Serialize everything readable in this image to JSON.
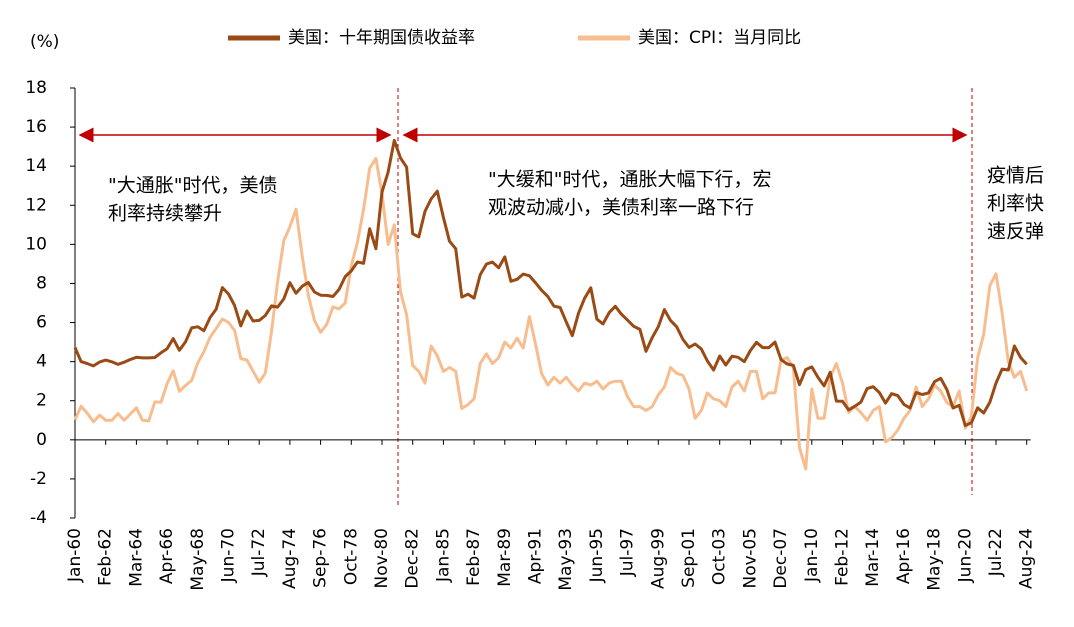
{
  "chart_data": {
    "type": "line",
    "y_unit_label": "(%)",
    "annotations": {
      "left": [
        "\"大通胀\"时代，美债",
        "利率持续攀升"
      ],
      "middle": [
        "\"大缓和\"时代，通胀大幅下行，宏",
        "观波动减小，美债利率一路下行"
      ],
      "right": [
        "疫情后",
        "利率快",
        "速反弹"
      ]
    },
    "categories": [
      "Jan-60",
      null,
      null,
      null,
      null,
      "Feb-62",
      null,
      null,
      null,
      null,
      "Mar-64",
      null,
      null,
      null,
      null,
      "Apr-66",
      null,
      null,
      null,
      null,
      "May-68",
      null,
      null,
      null,
      null,
      "Jun-70",
      null,
      null,
      null,
      null,
      "Jul-72",
      null,
      null,
      null,
      null,
      "Aug-74",
      null,
      null,
      null,
      null,
      "Sep-76",
      null,
      null,
      null,
      null,
      "Oct-78",
      null,
      null,
      null,
      null,
      "Nov-80",
      null,
      null,
      null,
      null,
      "Dec-82",
      null,
      null,
      null,
      null,
      "Jan-85",
      null,
      null,
      null,
      null,
      "Feb-87",
      null,
      null,
      null,
      null,
      "Mar-89",
      null,
      null,
      null,
      null,
      "Apr-91",
      null,
      null,
      null,
      null,
      "May-93",
      null,
      null,
      null,
      null,
      "Jun-95",
      null,
      null,
      null,
      null,
      "Jul-97",
      null,
      null,
      null,
      null,
      "Aug-99",
      null,
      null,
      null,
      null,
      "Sep-01",
      null,
      null,
      null,
      null,
      "Oct-03",
      null,
      null,
      null,
      null,
      "Nov-05",
      null,
      null,
      null,
      null,
      "Dec-07",
      null,
      null,
      null,
      null,
      "Jan-10",
      null,
      null,
      null,
      null,
      "Feb-12",
      null,
      null,
      null,
      null,
      "Mar-14",
      null,
      null,
      null,
      null,
      "Apr-16",
      null,
      null,
      null,
      null,
      "May-18",
      null,
      null,
      null,
      null,
      "Jun-20",
      null,
      null,
      null,
      null,
      "Jul-22",
      null,
      null,
      null,
      null,
      "Aug-24"
    ],
    "series": [
      {
        "name": "美国：十年期国债收益率",
        "color": "#9a4a14",
        "values": [
          4.72,
          4.0,
          3.9,
          3.78,
          3.98,
          4.08,
          3.99,
          3.86,
          3.97,
          4.11,
          4.22,
          4.19,
          4.19,
          4.21,
          4.45,
          4.66,
          5.18,
          4.58,
          5.01,
          5.73,
          5.78,
          5.58,
          6.26,
          6.69,
          7.79,
          7.46,
          6.87,
          5.83,
          6.59,
          6.08,
          6.11,
          6.36,
          6.85,
          6.79,
          7.21,
          8.04,
          7.5,
          7.86,
          8.05,
          7.56,
          7.4,
          7.39,
          7.33,
          7.69,
          8.35,
          8.64,
          9.1,
          9.03,
          10.8,
          9.78,
          12.68,
          13.69,
          15.32,
          14.43,
          13.95,
          10.54,
          10.38,
          11.69,
          12.32,
          12.72,
          11.38,
          10.16,
          9.78,
          7.3,
          7.45,
          7.25,
          8.45,
          8.99,
          9.09,
          8.8,
          9.36,
          8.11,
          8.21,
          8.48,
          8.39,
          8.04,
          7.65,
          7.34,
          6.84,
          6.77,
          6.04,
          5.33,
          6.48,
          7.24,
          7.78,
          6.17,
          5.93,
          6.51,
          6.83,
          6.42,
          6.12,
          5.81,
          5.65,
          4.53,
          5.23,
          5.79,
          6.66,
          6.1,
          5.78,
          5.14,
          4.73,
          4.9,
          4.65,
          4.03,
          3.57,
          4.29,
          3.83,
          4.28,
          4.22,
          4.0,
          4.57,
          4.99,
          4.72,
          4.72,
          5.0,
          4.1,
          3.88,
          3.81,
          2.82,
          3.59,
          3.73,
          3.2,
          2.76,
          3.46,
          1.98,
          1.97,
          1.53,
          1.72,
          1.93,
          2.62,
          2.72,
          2.42,
          1.88,
          2.36,
          2.26,
          1.81,
          1.63,
          2.42,
          2.32,
          2.4,
          2.98,
          3.15,
          2.57,
          1.63,
          1.76,
          0.73,
          0.87,
          1.64,
          1.37,
          1.93,
          2.9,
          3.62,
          3.57,
          4.8,
          4.21,
          3.87
        ]
      },
      {
        "name": "美国：CPI：当月同比",
        "color": "#f7bd8f",
        "values": [
          1.03,
          1.72,
          1.36,
          0.92,
          1.26,
          1.0,
          1.0,
          1.34,
          1.0,
          1.32,
          1.64,
          1.0,
          0.97,
          1.94,
          1.92,
          2.87,
          3.53,
          2.48,
          2.78,
          3.04,
          3.94,
          4.51,
          5.25,
          5.7,
          6.18,
          6.0,
          5.6,
          4.16,
          4.08,
          3.51,
          2.95,
          3.41,
          5.53,
          8.1,
          10.2,
          10.9,
          11.8,
          9.4,
          7.4,
          6.1,
          5.5,
          5.9,
          6.8,
          6.7,
          7.0,
          8.9,
          10.1,
          11.8,
          13.9,
          14.4,
          12.6,
          10.0,
          11.0,
          7.6,
          6.4,
          3.8,
          3.5,
          2.9,
          4.8,
          4.3,
          3.5,
          3.7,
          3.5,
          1.6,
          1.8,
          2.1,
          3.9,
          4.4,
          3.9,
          4.2,
          5.0,
          4.7,
          5.2,
          4.7,
          6.3,
          4.9,
          3.4,
          2.8,
          3.2,
          2.9,
          3.2,
          2.8,
          2.5,
          2.9,
          2.8,
          3.0,
          2.6,
          2.9,
          3.0,
          3.0,
          2.2,
          1.7,
          1.7,
          1.5,
          1.7,
          2.3,
          2.7,
          3.7,
          3.4,
          3.3,
          2.6,
          1.1,
          1.5,
          2.4,
          2.1,
          2.0,
          1.7,
          2.7,
          3.0,
          2.5,
          3.5,
          3.5,
          2.1,
          2.4,
          2.4,
          4.1,
          4.2,
          3.7,
          -0.4,
          -1.5,
          2.6,
          1.1,
          1.1,
          3.2,
          3.9,
          2.9,
          1.4,
          1.7,
          1.4,
          1.0,
          1.5,
          1.7,
          -0.1,
          0.1,
          0.5,
          1.1,
          1.5,
          2.7,
          1.7,
          2.1,
          2.8,
          2.5,
          1.9,
          1.7,
          2.5,
          0.6,
          1.2,
          4.2,
          5.4,
          7.9,
          8.5,
          6.5,
          4.0,
          3.2,
          3.5,
          2.5
        ]
      }
    ],
    "ylim": [
      -4,
      18
    ],
    "yticks": [
      -4,
      -2,
      0,
      2,
      4,
      6,
      8,
      10,
      12,
      14,
      16,
      18
    ],
    "grid": false
  }
}
